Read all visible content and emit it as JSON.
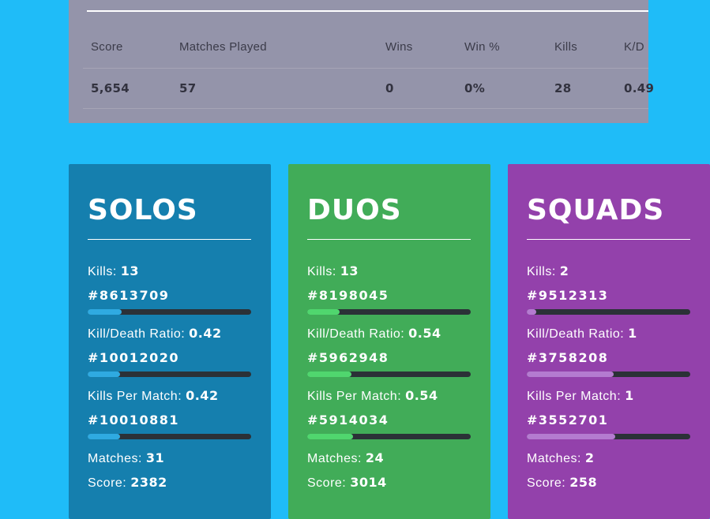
{
  "page": {
    "background_color": "#1FBCF8"
  },
  "stats_table": {
    "background_color": "#9494AA",
    "top_line_color": "#FFFFFF",
    "columns": [
      "Score",
      "Matches Played",
      "Wins",
      "Win %",
      "Kills",
      "K/D"
    ],
    "row": [
      "5,654",
      "57",
      "0",
      "0%",
      "28",
      "0.49"
    ]
  },
  "bar_track_color": "#2B3137",
  "cards": [
    {
      "title": "SOLOS",
      "bg": "#157FAE",
      "bar_fill": "#2FAAE1",
      "stats": [
        {
          "label": "Kills:",
          "value": "13",
          "rank": "#8613709",
          "bar": "21%"
        },
        {
          "label": "Kill/Death Ratio:",
          "value": "0.42",
          "rank": "#10012020",
          "bar": "20%"
        },
        {
          "label": "Kills Per Match:",
          "value": "0.42",
          "rank": "#10010881",
          "bar": "20%"
        }
      ],
      "footer": [
        {
          "label": "Matches:",
          "value": "31"
        },
        {
          "label": "Score:",
          "value": "2382"
        }
      ]
    },
    {
      "title": "DUOS",
      "bg": "#41AC58",
      "bar_fill": "#50D66E",
      "stats": [
        {
          "label": "Kills:",
          "value": "13",
          "rank": "#8198045",
          "bar": "20%"
        },
        {
          "label": "Kill/Death Ratio:",
          "value": "0.54",
          "rank": "#5962948",
          "bar": "27%"
        },
        {
          "label": "Kills Per Match:",
          "value": "0.54",
          "rank": "#5914034",
          "bar": "28%"
        }
      ],
      "footer": [
        {
          "label": "Matches:",
          "value": "24"
        },
        {
          "label": "Score:",
          "value": "3014"
        }
      ]
    },
    {
      "title": "SQUADS",
      "bg": "#9341AB",
      "bar_fill": "#B47BD0",
      "stats": [
        {
          "label": "Kills:",
          "value": "2",
          "rank": "#9512313",
          "bar": "6%"
        },
        {
          "label": "Kill/Death Ratio:",
          "value": "1",
          "rank": "#3758208",
          "bar": "53%"
        },
        {
          "label": "Kills Per Match:",
          "value": "1",
          "rank": "#3552701",
          "bar": "54%"
        }
      ],
      "footer": [
        {
          "label": "Matches:",
          "value": "2"
        },
        {
          "label": "Score:",
          "value": "258"
        }
      ]
    }
  ]
}
